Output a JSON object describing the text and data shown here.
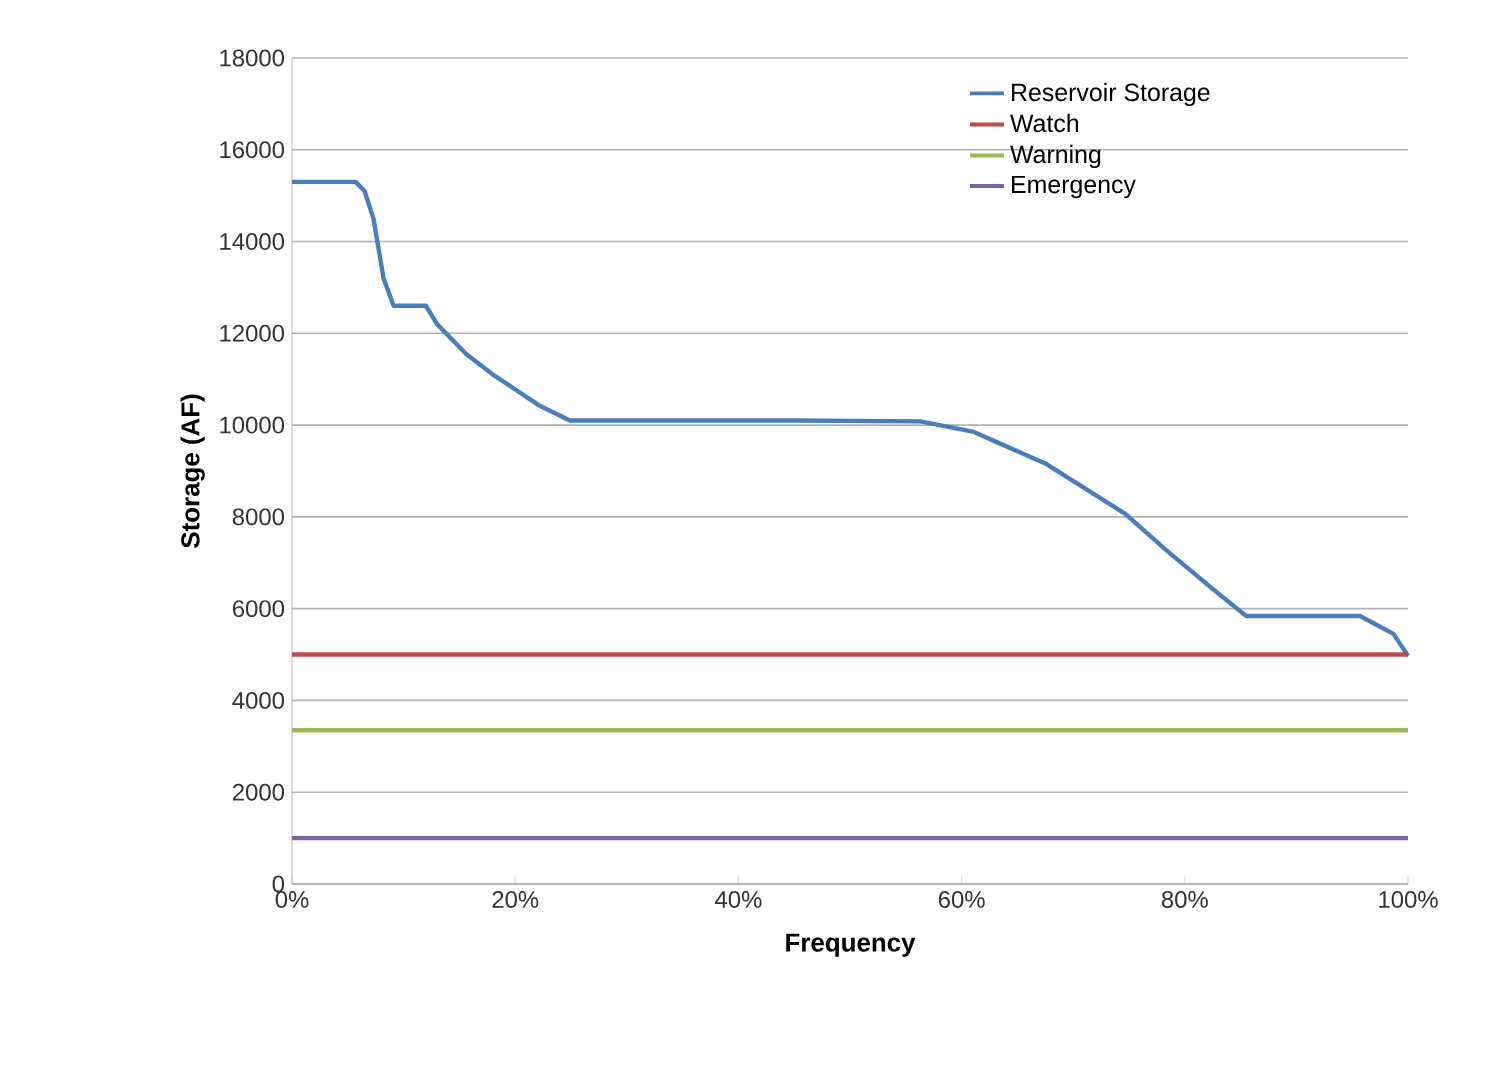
{
  "chart_data": {
    "type": "line",
    "xlabel": "Frequency",
    "ylabel": "Storage (AF)",
    "series": [
      {
        "name": "Reservoir Storage",
        "color": "#4a7ebb",
        "x": [
          0,
          5.7,
          6.5,
          7.3,
          8.2,
          9.1,
          10.5,
          12,
          13,
          15.6,
          18,
          22.2,
          24.9,
          35,
          45,
          56.3,
          61.1,
          67.6,
          74.7,
          78.3,
          82.6,
          85.5,
          90,
          95.7,
          98.7,
          100
        ],
        "values": [
          15300,
          15300,
          15100,
          14500,
          13200,
          12600,
          12600,
          12600,
          12200,
          11550,
          11100,
          10420,
          10100,
          10100,
          10100,
          10080,
          9850,
          9150,
          8060,
          7280,
          6410,
          5840,
          5840,
          5840,
          5450,
          4970
        ]
      },
      {
        "name": "Watch",
        "color": "#be4b48",
        "x": [
          0,
          100
        ],
        "values": [
          5000,
          5000
        ]
      },
      {
        "name": "Warning",
        "color": "#98b954",
        "x": [
          0,
          100
        ],
        "values": [
          3350,
          3350
        ]
      },
      {
        "name": "Emergency",
        "color": "#7d60a0",
        "x": [
          0,
          100
        ],
        "values": [
          1000,
          1000
        ]
      }
    ],
    "xlim": [
      0,
      100
    ],
    "ylim": [
      0,
      18000
    ],
    "xticks": [
      {
        "value": 0,
        "label": "0%"
      },
      {
        "value": 20,
        "label": "20%"
      },
      {
        "value": 40,
        "label": "40%"
      },
      {
        "value": 60,
        "label": "60%"
      },
      {
        "value": 80,
        "label": "80%"
      },
      {
        "value": 100,
        "label": "100%"
      }
    ],
    "yticks": [
      0,
      2000,
      4000,
      6000,
      8000,
      10000,
      12000,
      14000,
      16000,
      18000
    ],
    "grid": "y",
    "legend": "top right",
    "marker": "none",
    "line_style": "solid"
  }
}
